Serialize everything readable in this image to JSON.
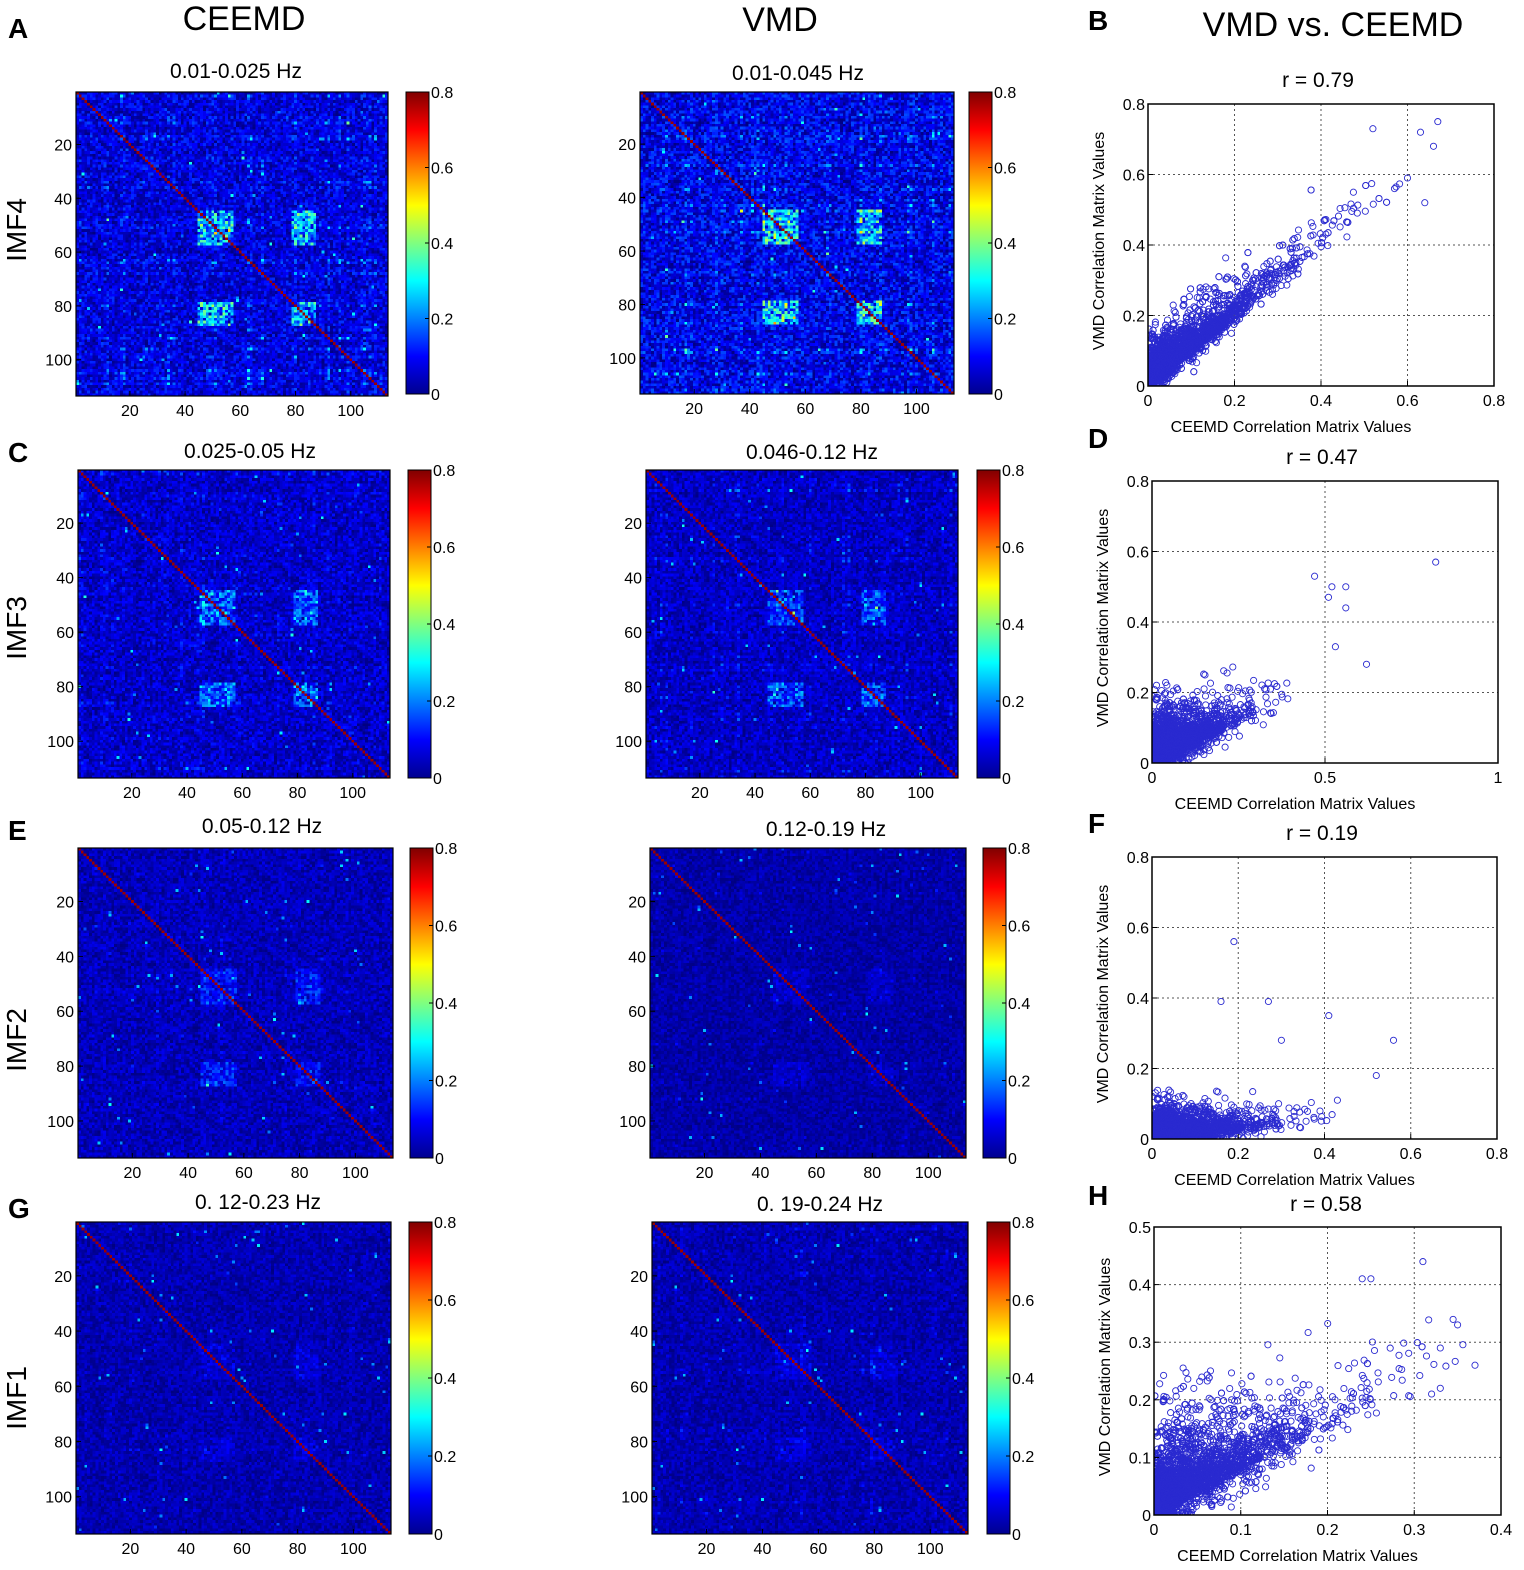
{
  "header": {
    "ceemd": "CEEMD",
    "vmd": "VMD",
    "comparison": "VMD vs. CEEMD"
  },
  "rows": [
    {
      "imf": "IMF4",
      "ceemd_title": "0.01-0.025 Hz",
      "vmd_title": "0.01-0.045 Hz",
      "left_label": "A",
      "right_label": "B"
    },
    {
      "imf": "IMF3",
      "ceemd_title": "0.025-0.05 Hz",
      "vmd_title": "0.046-0.12 Hz",
      "left_label": "C",
      "right_label": "D"
    },
    {
      "imf": "IMF2",
      "ceemd_title": "0.05-0.12 Hz",
      "vmd_title": "0.12-0.19 Hz",
      "left_label": "E",
      "right_label": "F"
    },
    {
      "imf": "IMF1",
      "ceemd_title": "0. 12-0.23 Hz",
      "vmd_title": "0. 19-0.24 Hz",
      "left_label": "G",
      "right_label": "H"
    }
  ],
  "colors": {
    "scatter_marker": "#2a2ad0",
    "scatter_dense": "#1f45ff",
    "grid": "#555555"
  },
  "chart_data": [
    {
      "type": "heatmap",
      "id": "ceemd-imf4",
      "title": "0.01-0.025 Hz",
      "matrix_size": 113,
      "x_ticks": [
        20,
        40,
        60,
        80,
        100
      ],
      "y_ticks": [
        20,
        40,
        60,
        80,
        100
      ],
      "colorbar_range": [
        0,
        0.8
      ],
      "colorbar_ticks": [
        0,
        0.2,
        0.4,
        0.6,
        0.8
      ],
      "colormap": "jet",
      "diagonal": "high",
      "structure": "dense blocks near nodes 45-55, strong striping"
    },
    {
      "type": "heatmap",
      "id": "vmd-imf4",
      "title": "0.01-0.045 Hz",
      "matrix_size": 113,
      "x_ticks": [
        20,
        40,
        60,
        80,
        100
      ],
      "y_ticks": [
        20,
        40,
        60,
        80,
        100
      ],
      "colorbar_range": [
        0,
        0.8
      ],
      "colorbar_ticks": [
        0,
        0.2,
        0.4,
        0.6,
        0.8
      ],
      "colormap": "jet",
      "diagonal": "high",
      "structure": "dense blocks near nodes 45-55, strong striping"
    },
    {
      "type": "scatter",
      "id": "imf4-scatter",
      "title": "r = 0.79",
      "xlabel": "CEEMD Correlation Matrix Values",
      "ylabel": "VMD Correlation Matrix Values",
      "xlim": [
        0,
        0.8
      ],
      "ylim": [
        0,
        0.8
      ],
      "x_ticks": [
        0,
        0.2,
        0.4,
        0.6,
        0.8
      ],
      "y_ticks": [
        0,
        0.2,
        0.4,
        0.6,
        0.8
      ],
      "r": 0.79,
      "cloud": {
        "n": 3000,
        "x_scale": 0.09,
        "slope": 0.98,
        "noise": 0.05,
        "x_max": 0.68,
        "y_max": 0.76
      },
      "highlight_points": [
        [
          0.67,
          0.75
        ],
        [
          0.63,
          0.72
        ],
        [
          0.52,
          0.73
        ],
        [
          0.66,
          0.68
        ],
        [
          0.64,
          0.52
        ],
        [
          0.6,
          0.59
        ],
        [
          0.57,
          0.56
        ]
      ]
    },
    {
      "type": "heatmap",
      "id": "ceemd-imf3",
      "title": "0.025-0.05 Hz",
      "matrix_size": 113,
      "x_ticks": [
        20,
        40,
        60,
        80,
        100
      ],
      "y_ticks": [
        20,
        40,
        60,
        80,
        100
      ],
      "colorbar_range": [
        0,
        0.8
      ],
      "colorbar_ticks": [
        0,
        0.2,
        0.4,
        0.6,
        0.8
      ],
      "colormap": "jet",
      "diagonal": "high",
      "structure": "moderate blocks near nodes 45-55"
    },
    {
      "type": "heatmap",
      "id": "vmd-imf3",
      "title": "0.046-0.12 Hz",
      "matrix_size": 113,
      "x_ticks": [
        20,
        40,
        60,
        80,
        100
      ],
      "y_ticks": [
        20,
        40,
        60,
        80,
        100
      ],
      "colorbar_range": [
        0,
        0.8
      ],
      "colorbar_ticks": [
        0,
        0.2,
        0.4,
        0.6,
        0.8
      ],
      "colormap": "jet",
      "diagonal": "high",
      "structure": "moderate blocks"
    },
    {
      "type": "scatter",
      "id": "imf3-scatter",
      "title": "r = 0.47",
      "xlabel": "CEEMD Correlation Matrix Values",
      "ylabel": "VMD Correlation Matrix Values",
      "xlim": [
        0,
        1
      ],
      "ylim": [
        0,
        0.8
      ],
      "x_ticks": [
        0,
        0.5,
        1
      ],
      "y_ticks": [
        0,
        0.2,
        0.4,
        0.6,
        0.8
      ],
      "r": 0.47,
      "cloud": {
        "n": 2600,
        "x_scale": 0.07,
        "slope": 0.45,
        "noise": 0.055,
        "x_max": 0.4,
        "y_max": 0.5
      },
      "highlight_points": [
        [
          0.82,
          0.57
        ],
        [
          0.47,
          0.53
        ],
        [
          0.52,
          0.5
        ],
        [
          0.56,
          0.5
        ],
        [
          0.51,
          0.47
        ],
        [
          0.56,
          0.44
        ],
        [
          0.53,
          0.33
        ],
        [
          0.62,
          0.28
        ]
      ]
    },
    {
      "type": "heatmap",
      "id": "ceemd-imf2",
      "title": "0.05-0.12 Hz",
      "matrix_size": 113,
      "x_ticks": [
        20,
        40,
        60,
        80,
        100
      ],
      "y_ticks": [
        20,
        40,
        60,
        80,
        100
      ],
      "colorbar_range": [
        0,
        0.8
      ],
      "colorbar_ticks": [
        0,
        0.2,
        0.4,
        0.6,
        0.8
      ],
      "colormap": "jet",
      "diagonal": "high",
      "structure": "weak blocks"
    },
    {
      "type": "heatmap",
      "id": "vmd-imf2",
      "title": "0.12-0.19 Hz",
      "matrix_size": 113,
      "x_ticks": [
        20,
        40,
        60,
        80,
        100
      ],
      "y_ticks": [
        20,
        40,
        60,
        80,
        100
      ],
      "colorbar_range": [
        0,
        0.8
      ],
      "colorbar_ticks": [
        0,
        0.2,
        0.4,
        0.6,
        0.8
      ],
      "colormap": "jet",
      "diagonal": "high",
      "structure": "mostly uniform low values"
    },
    {
      "type": "scatter",
      "id": "imf2-scatter",
      "title": "r = 0.19",
      "xlabel": "CEEMD Correlation Matrix Values",
      "ylabel": "VMD Correlation Matrix Values",
      "xlim": [
        0,
        0.8
      ],
      "ylim": [
        0,
        0.8
      ],
      "x_ticks": [
        0,
        0.2,
        0.4,
        0.6,
        0.8
      ],
      "y_ticks": [
        0,
        0.2,
        0.4,
        0.6,
        0.8
      ],
      "r": 0.19,
      "cloud": {
        "n": 2600,
        "x_scale": 0.07,
        "slope": 0.12,
        "noise": 0.035,
        "x_max": 0.42,
        "y_max": 0.22
      },
      "highlight_points": [
        [
          0.19,
          0.56
        ],
        [
          0.27,
          0.39
        ],
        [
          0.16,
          0.39
        ],
        [
          0.41,
          0.35
        ],
        [
          0.56,
          0.28
        ],
        [
          0.52,
          0.18
        ],
        [
          0.43,
          0.11
        ],
        [
          0.3,
          0.28
        ]
      ]
    },
    {
      "type": "heatmap",
      "id": "ceemd-imf1",
      "title": "0. 12-0.23 Hz",
      "matrix_size": 113,
      "x_ticks": [
        20,
        40,
        60,
        80,
        100
      ],
      "y_ticks": [
        20,
        40,
        60,
        80,
        100
      ],
      "colorbar_range": [
        0,
        0.8
      ],
      "colorbar_ticks": [
        0,
        0.2,
        0.4,
        0.6,
        0.8
      ],
      "colormap": "jet",
      "diagonal": "high",
      "structure": "mostly uniform low values"
    },
    {
      "type": "heatmap",
      "id": "vmd-imf1",
      "title": "0. 19-0.24 Hz",
      "matrix_size": 113,
      "x_ticks": [
        20,
        40,
        60,
        80,
        100
      ],
      "y_ticks": [
        20,
        40,
        60,
        80,
        100
      ],
      "colorbar_range": [
        0,
        0.8
      ],
      "colorbar_ticks": [
        0,
        0.2,
        0.4,
        0.6,
        0.8
      ],
      "colormap": "jet",
      "diagonal": "high",
      "structure": "mostly uniform low values"
    },
    {
      "type": "scatter",
      "id": "imf1-scatter",
      "title": "r = 0.58",
      "xlabel": "CEEMD Correlation Matrix Values",
      "ylabel": "VMD Correlation Matrix Values",
      "xlim": [
        0,
        0.4
      ],
      "ylim": [
        0,
        0.5
      ],
      "x_ticks": [
        0,
        0.1,
        0.2,
        0.3,
        0.4
      ],
      "y_ticks": [
        0,
        0.1,
        0.2,
        0.3,
        0.4,
        0.5
      ],
      "r": 0.58,
      "cloud": {
        "n": 2600,
        "x_scale": 0.06,
        "slope": 0.75,
        "noise": 0.06,
        "x_max": 0.38,
        "y_max": 0.45
      },
      "highlight_points": [
        [
          0.31,
          0.44
        ],
        [
          0.37,
          0.26
        ],
        [
          0.35,
          0.33
        ],
        [
          0.33,
          0.29
        ],
        [
          0.25,
          0.41
        ],
        [
          0.24,
          0.41
        ],
        [
          0.32,
          0.21
        ],
        [
          0.33,
          0.22
        ]
      ]
    }
  ]
}
